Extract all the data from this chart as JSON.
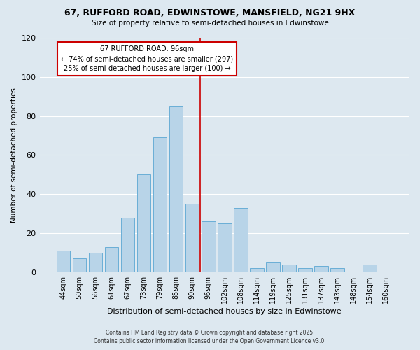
{
  "title": "67, RUFFORD ROAD, EDWINSTOWE, MANSFIELD, NG21 9HX",
  "subtitle": "Size of property relative to semi-detached houses in Edwinstowe",
  "xlabel": "Distribution of semi-detached houses by size in Edwinstowe",
  "ylabel": "Number of semi-detached properties",
  "bar_labels": [
    "44sqm",
    "50sqm",
    "56sqm",
    "61sqm",
    "67sqm",
    "73sqm",
    "79sqm",
    "85sqm",
    "90sqm",
    "96sqm",
    "102sqm",
    "108sqm",
    "114sqm",
    "119sqm",
    "125sqm",
    "131sqm",
    "137sqm",
    "143sqm",
    "148sqm",
    "154sqm",
    "160sqm"
  ],
  "bar_values": [
    11,
    7,
    10,
    13,
    28,
    50,
    69,
    85,
    35,
    26,
    25,
    33,
    2,
    5,
    4,
    2,
    3,
    2,
    0,
    4,
    0
  ],
  "bar_color": "#b8d4e8",
  "bar_edge_color": "#6aaed6",
  "property_line_index": 9,
  "annotation_title": "67 RUFFORD ROAD: 96sqm",
  "annotation_line1": "← 74% of semi-detached houses are smaller (297)",
  "annotation_line2": "25% of semi-detached houses are larger (100) →",
  "annotation_box_color": "#ffffff",
  "annotation_box_edge": "#cc0000",
  "vline_color": "#cc0000",
  "ylim": [
    0,
    120
  ],
  "yticks": [
    0,
    20,
    40,
    60,
    80,
    100,
    120
  ],
  "grid_color": "#ffffff",
  "bg_color": "#dde8f0",
  "footer1": "Contains HM Land Registry data © Crown copyright and database right 2025.",
  "footer2": "Contains public sector information licensed under the Open Government Licence v3.0."
}
